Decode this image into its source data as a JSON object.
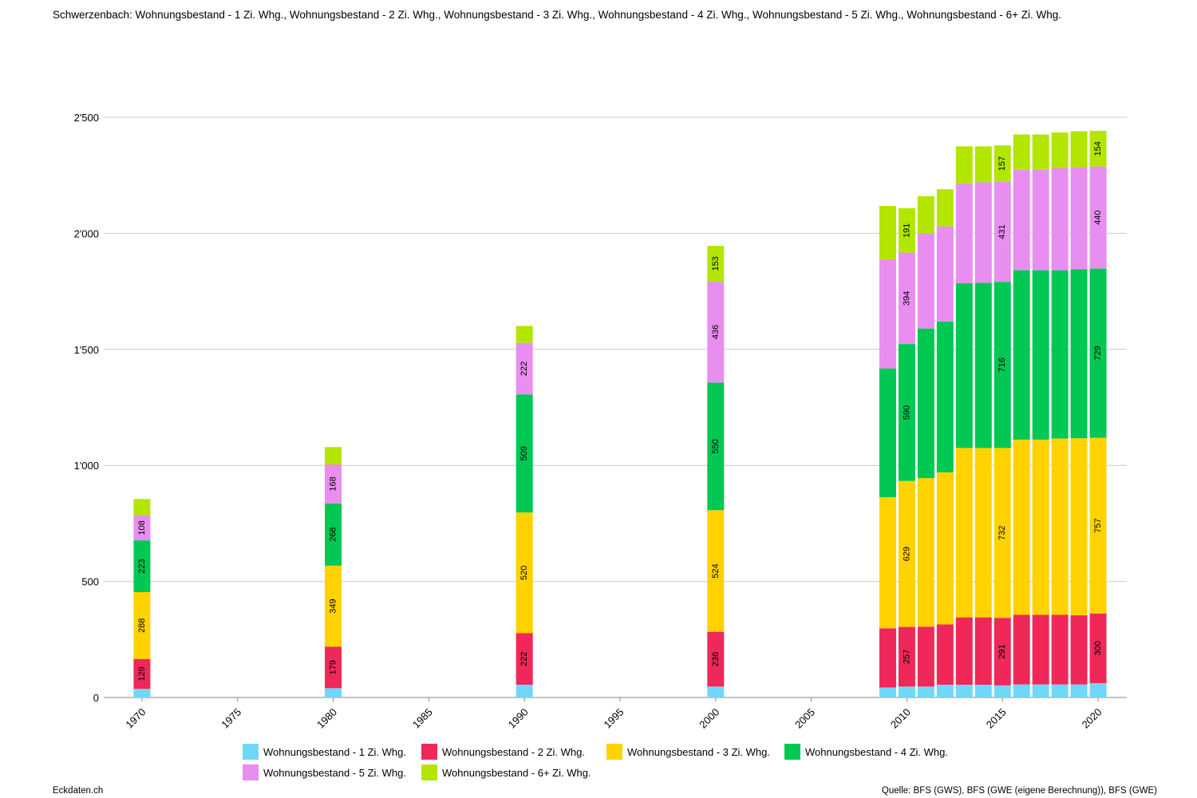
{
  "title": "Schwerzenbach: Wohnungsbestand - 1 Zi. Whg., Wohnungsbestand - 2 Zi. Whg., Wohnungsbestand - 3 Zi. Whg., Wohnungsbestand - 4 Zi. Whg., Wohnungsbestand - 5 Zi. Whg., Wohnungsbestand - 6+ Zi. Whg.",
  "footer": {
    "brand": "Eckdaten.ch",
    "source": "Quelle: BFS (GWS), BFS (GWE (eigene Berechnung)), BFS (GWE)"
  },
  "chart_data": {
    "type": "bar",
    "stacked": true,
    "x": [
      1970,
      1980,
      1990,
      2000,
      2009,
      2010,
      2011,
      2012,
      2013,
      2014,
      2015,
      2016,
      2017,
      2018,
      2019,
      2020
    ],
    "x_ticks": [
      "1970",
      "1975",
      "1980",
      "1985",
      "1990",
      "1995",
      "2000",
      "2005",
      "2010",
      "2015",
      "2020"
    ],
    "x_range": [
      1968,
      2021.5
    ],
    "y_ticks": [
      "0",
      "500",
      "1'000",
      "1'500",
      "2'000",
      "2'500"
    ],
    "ylim": [
      0,
      2500
    ],
    "grid": true,
    "legend_position": "bottom",
    "series": [
      {
        "name": "Wohnungsbestand - 1 Zi. Whg.",
        "color": "#6fd8f8",
        "values": [
          37,
          40,
          55,
          47,
          43,
          47,
          47,
          55,
          55,
          55,
          52,
          56,
          56,
          56,
          56,
          62
        ]
      },
      {
        "name": "Wohnungsbestand - 2 Zi. Whg.",
        "color": "#f0285a",
        "values": [
          129,
          179,
          222,
          236,
          255,
          257,
          258,
          260,
          290,
          290,
          291,
          300,
          300,
          300,
          298,
          300
        ]
      },
      {
        "name": "Wohnungsbestand - 3 Zi. Whg.",
        "color": "#ffd200",
        "values": [
          288,
          349,
          520,
          524,
          565,
          629,
          640,
          655,
          730,
          730,
          732,
          755,
          755,
          760,
          763,
          757
        ]
      },
      {
        "name": "Wohnungsbestand - 4 Zi. Whg.",
        "color": "#00c853",
        "values": [
          223,
          268,
          509,
          550,
          555,
          590,
          645,
          650,
          710,
          712,
          716,
          730,
          730,
          725,
          728,
          729
        ]
      },
      {
        "name": "Wohnungsbestand - 5 Zi. Whg.",
        "color": "#e88ef0",
        "values": [
          108,
          168,
          222,
          436,
          470,
          394,
          410,
          410,
          430,
          433,
          431,
          433,
          433,
          440,
          440,
          440
        ]
      },
      {
        "name": "Wohnungsbestand - 6+ Zi. Whg.",
        "color": "#b2e600",
        "values": [
          70,
          75,
          73,
          153,
          230,
          191,
          160,
          160,
          160,
          155,
          157,
          152,
          152,
          154,
          155,
          154
        ]
      }
    ],
    "labeled_x": [
      1970,
      1980,
      1990,
      2000,
      2010,
      2015,
      2020
    ]
  }
}
